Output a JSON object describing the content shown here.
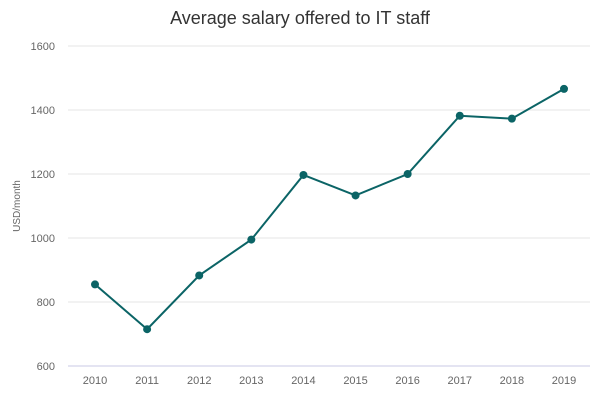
{
  "chart_data": {
    "type": "line",
    "title": "Average salary offered to IT staff",
    "xlabel": "",
    "ylabel": "USD/month",
    "categories": [
      "2010",
      "2011",
      "2012",
      "2013",
      "2014",
      "2015",
      "2016",
      "2017",
      "2018",
      "2019"
    ],
    "series": [
      {
        "values": [
          855,
          715,
          883,
          995,
          1197,
          1133,
          1200,
          1382,
          1373,
          1466
        ]
      }
    ],
    "ylim": [
      600,
      1600
    ],
    "yticks": [
      600,
      800,
      1000,
      1200,
      1400,
      1600
    ],
    "grid": true,
    "legend": "none",
    "line_color": "#0b6466",
    "marker_color": "#0b6466"
  }
}
